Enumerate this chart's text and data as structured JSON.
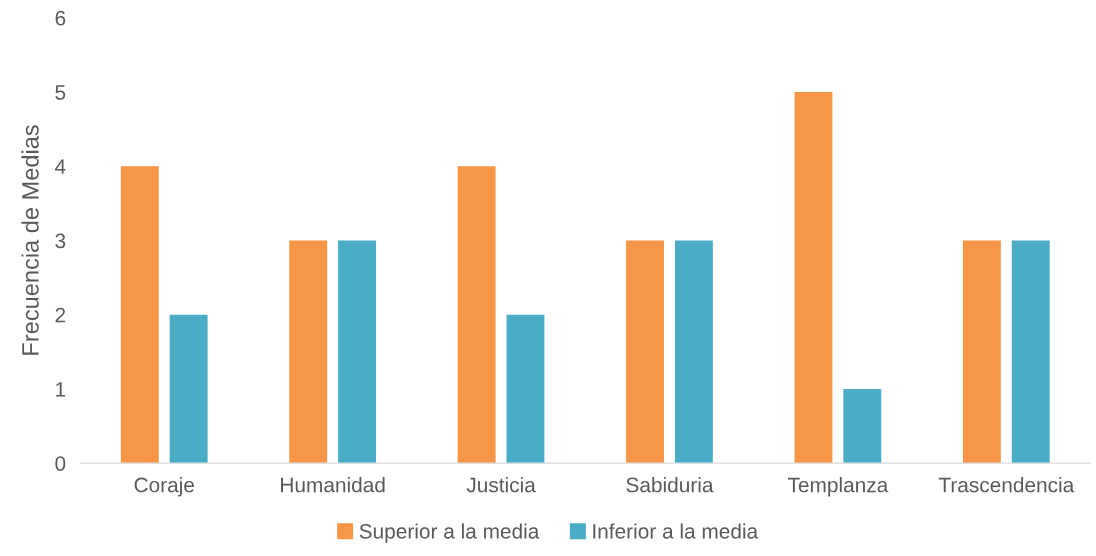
{
  "chart_data": {
    "type": "bar",
    "ylabel": "Frecuencia de Medias",
    "categories": [
      "Coraje",
      "Humanidad",
      "Justicia",
      "Sabiduria",
      "Templanza",
      "Trascendencia"
    ],
    "series": [
      {
        "name": "Superior a la media",
        "color": "#f79646",
        "values": [
          4,
          3,
          4,
          3,
          5,
          3
        ]
      },
      {
        "name": "Inferior a la media",
        "color": "#4bacc6",
        "values": [
          2,
          3,
          2,
          3,
          1,
          3
        ]
      }
    ],
    "ylim": [
      0,
      6
    ],
    "yticks": [
      0,
      1,
      2,
      3,
      4,
      5,
      6
    ],
    "grid": false,
    "legend": "bottom"
  }
}
